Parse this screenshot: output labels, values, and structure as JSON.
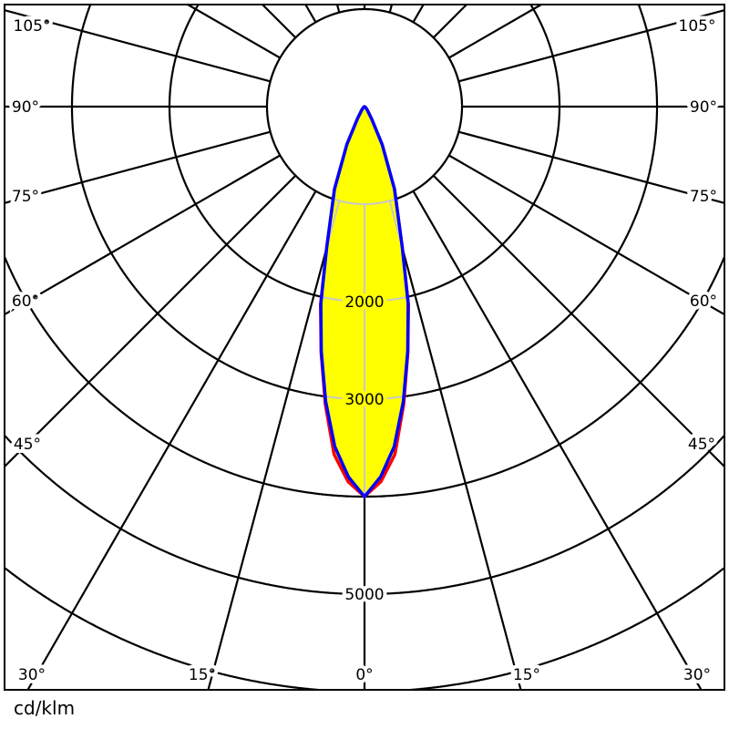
{
  "chart_data": {
    "type": "polar",
    "unit": "cd/klm",
    "angle_step_deg": 15,
    "ring_values": [
      1000,
      2000,
      3000,
      4000,
      5000,
      6000
    ],
    "ring_labels": [
      {
        "value": 2000,
        "text": "2000"
      },
      {
        "value": 3000,
        "text": "3000"
      },
      {
        "value": 5000,
        "text": "5000"
      }
    ],
    "angle_labels": {
      "left": [
        "105°",
        "90°",
        "75°",
        "60°",
        "45°",
        "30°",
        "15°"
      ],
      "center": "0°",
      "right": [
        "105°",
        "90°",
        "75°",
        "60°",
        "45°",
        "30°",
        "15°"
      ]
    },
    "angle_label_values": [
      105,
      90,
      75,
      60,
      45,
      30,
      15
    ],
    "angles_deg": [
      0,
      2.5,
      5,
      7.5,
      10,
      12.5,
      15,
      20,
      25,
      30,
      40,
      60,
      90
    ],
    "series": [
      {
        "color": "#ff0000",
        "values": [
          4000,
          3850,
          3580,
          3080,
          2560,
          2080,
          1500,
          900,
          430,
          150,
          40,
          10,
          0
        ]
      },
      {
        "color": "#0000ff",
        "values": [
          4000,
          3800,
          3500,
          3050,
          2550,
          2070,
          1500,
          900,
          430,
          150,
          40,
          10,
          0
        ]
      }
    ],
    "fill_color": "#ffff00",
    "grid_color": "#000000",
    "inner_grid_color": "#c8c8c8",
    "symmetric": true
  }
}
